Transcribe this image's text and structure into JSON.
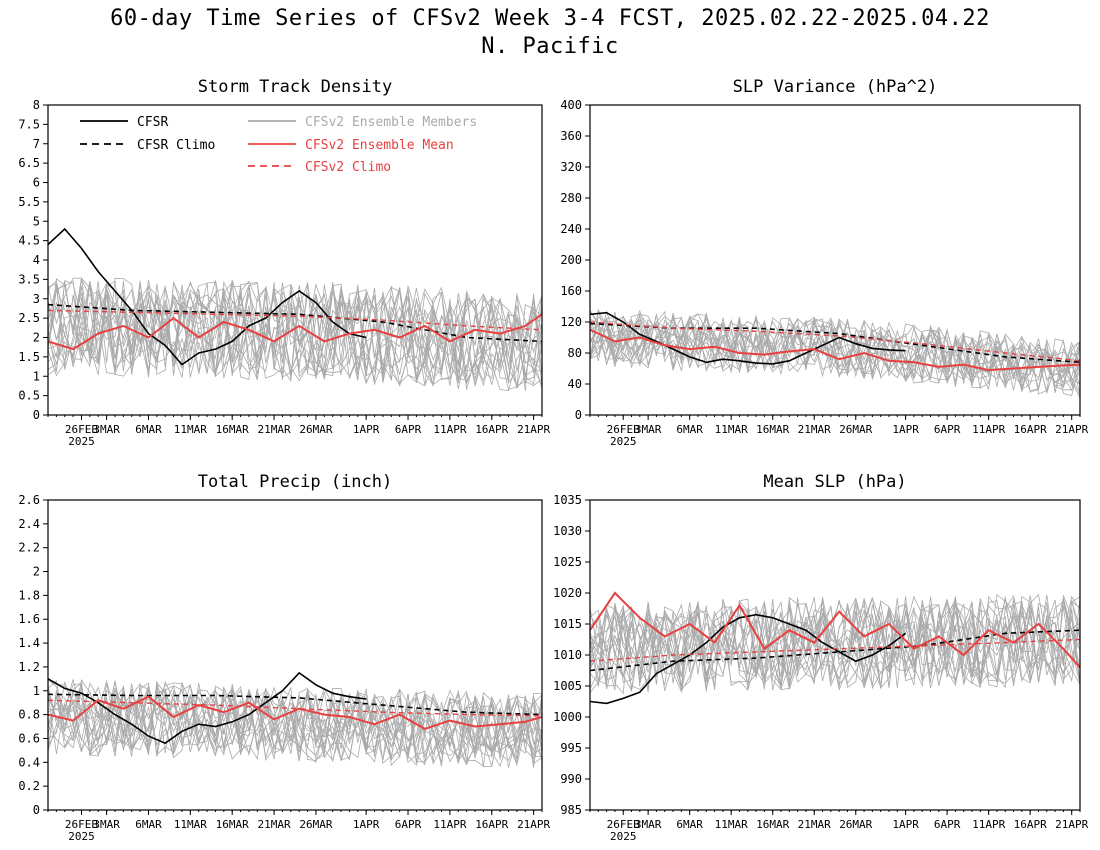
{
  "title": "60-day Time Series of CFSv2 Week 3-4 FCST, 2025.02.22-2025.04.22",
  "subtitle": "N. Pacific",
  "x_ticks": [
    "26FEB",
    "3MAR",
    "6MAR",
    "11MAR",
    "16MAR",
    "21MAR",
    "26MAR",
    "1APR",
    "6APR",
    "11APR",
    "16APR",
    "21APR"
  ],
  "x_year_label": "2025",
  "legend": [
    {
      "name": "CFSR",
      "color": "#000000",
      "dash": "solid"
    },
    {
      "name": "CFSR Climo",
      "color": "#000000",
      "dash": "dashed"
    },
    {
      "name": "CFSv2 Ensemble Members",
      "color": "#aaaaaa",
      "dash": "solid"
    },
    {
      "name": "CFSv2 Ensemble Mean",
      "color": "#e84040",
      "dash": "solid"
    },
    {
      "name": "CFSv2 Climo",
      "color": "#e84040",
      "dash": "dashed"
    }
  ],
  "colors": {
    "cfsr": "#000000",
    "member": "#aaaaaa",
    "mean": "#e84040",
    "climo_cfsv2": "#e84040"
  },
  "chart_data": [
    {
      "type": "line",
      "title": "Storm Track Density",
      "ylim": [
        0,
        8
      ],
      "yticks": [
        "0",
        "0.5",
        "1",
        "1.5",
        "2",
        "2.5",
        "3",
        "3.5",
        "4",
        "4.5",
        "5",
        "5.5",
        "6",
        "6.5",
        "7",
        "7.5",
        "8"
      ],
      "has_legend": true,
      "series": [
        {
          "name": "CFSR",
          "x": [
            0,
            2,
            4,
            6,
            8,
            10,
            12,
            14,
            16,
            18,
            20,
            22,
            24,
            26,
            28,
            30,
            32,
            34,
            36,
            38
          ],
          "values": [
            4.4,
            4.8,
            4.3,
            3.7,
            3.2,
            2.7,
            2.1,
            1.8,
            1.3,
            1.6,
            1.7,
            1.9,
            2.3,
            2.5,
            2.9,
            3.2,
            2.9,
            2.4,
            2.1,
            2.0
          ]
        },
        {
          "name": "CFSR Climo",
          "x": [
            0,
            10,
            20,
            30,
            40,
            50,
            59
          ],
          "values": [
            2.85,
            2.7,
            2.65,
            2.6,
            2.4,
            2.0,
            1.9
          ]
        },
        {
          "name": "CFSv2 Ensemble Mean",
          "x": [
            0,
            3,
            6,
            9,
            12,
            15,
            18,
            21,
            24,
            27,
            30,
            33,
            36,
            39,
            42,
            45,
            48,
            51,
            54,
            57,
            59
          ],
          "values": [
            1.9,
            1.7,
            2.1,
            2.3,
            2.0,
            2.5,
            2.0,
            2.4,
            2.2,
            1.9,
            2.3,
            1.9,
            2.1,
            2.2,
            2.0,
            2.3,
            1.9,
            2.2,
            2.1,
            2.3,
            2.6
          ]
        },
        {
          "name": "CFSv2 Climo",
          "x": [
            0,
            10,
            20,
            30,
            40,
            50,
            59
          ],
          "values": [
            2.7,
            2.65,
            2.6,
            2.55,
            2.45,
            2.3,
            2.2
          ]
        }
      ],
      "ensemble_members": {
        "center": 2.1,
        "spread": 1.3
      }
    },
    {
      "type": "line",
      "title": "SLP Variance (hPa^2)",
      "ylim": [
        0,
        400
      ],
      "yticks": [
        "0",
        "40",
        "80",
        "120",
        "160",
        "200",
        "240",
        "280",
        "320",
        "360",
        "400"
      ],
      "has_legend": false,
      "series": [
        {
          "name": "CFSR",
          "x": [
            0,
            2,
            4,
            6,
            8,
            10,
            12,
            14,
            16,
            18,
            20,
            22,
            24,
            26,
            28,
            30,
            32,
            34,
            36,
            38
          ],
          "values": [
            130,
            132,
            120,
            104,
            95,
            85,
            75,
            68,
            72,
            70,
            67,
            66,
            70,
            80,
            90,
            100,
            92,
            86,
            84,
            83
          ]
        },
        {
          "name": "CFSR Climo",
          "x": [
            0,
            10,
            20,
            30,
            40,
            50,
            59
          ],
          "values": [
            118,
            112,
            112,
            105,
            90,
            75,
            68
          ]
        },
        {
          "name": "CFSv2 Ensemble Mean",
          "x": [
            0,
            3,
            6,
            9,
            12,
            15,
            18,
            21,
            24,
            27,
            30,
            33,
            36,
            39,
            42,
            45,
            48,
            51,
            54,
            57,
            59
          ],
          "values": [
            110,
            95,
            100,
            90,
            85,
            88,
            80,
            78,
            82,
            85,
            72,
            80,
            70,
            68,
            62,
            65,
            58,
            60,
            62,
            64,
            65
          ]
        },
        {
          "name": "CFSv2 Climo",
          "x": [
            0,
            10,
            20,
            30,
            40,
            50,
            59
          ],
          "values": [
            120,
            112,
            108,
            102,
            92,
            80,
            70
          ]
        }
      ],
      "ensemble_members": {
        "center": 85,
        "spread": 38
      }
    },
    {
      "type": "line",
      "title": "Total Precip (inch)",
      "ylim": [
        0,
        2.6
      ],
      "yticks": [
        "0",
        "0.2",
        "0.4",
        "0.6",
        "0.8",
        "1",
        "1.2",
        "1.4",
        "1.6",
        "1.8",
        "2",
        "2.2",
        "2.4",
        "2.6"
      ],
      "has_legend": false,
      "series": [
        {
          "name": "CFSR",
          "x": [
            0,
            2,
            4,
            6,
            8,
            10,
            12,
            14,
            16,
            18,
            20,
            22,
            24,
            26,
            28,
            30,
            32,
            34,
            36,
            38
          ],
          "values": [
            1.1,
            1.02,
            0.98,
            0.9,
            0.8,
            0.72,
            0.62,
            0.56,
            0.66,
            0.72,
            0.7,
            0.74,
            0.8,
            0.9,
            1.0,
            1.15,
            1.05,
            0.98,
            0.95,
            0.93
          ]
        },
        {
          "name": "CFSR Climo",
          "x": [
            0,
            10,
            20,
            30,
            40,
            50,
            59
          ],
          "values": [
            0.97,
            0.96,
            0.96,
            0.94,
            0.88,
            0.82,
            0.8
          ]
        },
        {
          "name": "CFSv2 Ensemble Mean",
          "x": [
            0,
            3,
            6,
            9,
            12,
            15,
            18,
            21,
            24,
            27,
            30,
            33,
            36,
            39,
            42,
            45,
            48,
            51,
            54,
            57,
            59
          ],
          "values": [
            0.8,
            0.75,
            0.92,
            0.85,
            0.95,
            0.78,
            0.88,
            0.82,
            0.9,
            0.76,
            0.85,
            0.8,
            0.78,
            0.72,
            0.8,
            0.68,
            0.75,
            0.7,
            0.72,
            0.74,
            0.78
          ]
        },
        {
          "name": "CFSv2 Climo",
          "x": [
            0,
            10,
            20,
            30,
            40,
            50,
            59
          ],
          "values": [
            0.92,
            0.9,
            0.88,
            0.85,
            0.82,
            0.8,
            0.79
          ]
        }
      ],
      "ensemble_members": {
        "center": 0.8,
        "spread": 0.32
      }
    },
    {
      "type": "line",
      "title": "Mean SLP (hPa)",
      "ylim": [
        985,
        1035
      ],
      "yticks": [
        "985",
        "990",
        "995",
        "1000",
        "1005",
        "1010",
        "1015",
        "1020",
        "1025",
        "1030",
        "1035"
      ],
      "has_legend": false,
      "series": [
        {
          "name": "CFSR",
          "x": [
            0,
            2,
            4,
            6,
            8,
            10,
            12,
            14,
            16,
            18,
            20,
            22,
            24,
            26,
            28,
            30,
            32,
            34,
            36,
            38
          ],
          "values": [
            1002.5,
            1002.2,
            1003,
            1004,
            1007,
            1008.5,
            1010,
            1012,
            1014.5,
            1016,
            1016.5,
            1016,
            1015,
            1014,
            1012,
            1010.5,
            1009,
            1010,
            1011.5,
            1013.5
          ]
        },
        {
          "name": "CFSR Climo",
          "x": [
            0,
            10,
            20,
            30,
            40,
            50,
            59
          ],
          "values": [
            1007.5,
            1009,
            1009.5,
            1010.5,
            1011.5,
            1013.5,
            1014
          ]
        },
        {
          "name": "CFSv2 Ensemble Mean",
          "x": [
            0,
            3,
            6,
            9,
            12,
            15,
            18,
            21,
            24,
            27,
            30,
            33,
            36,
            39,
            42,
            45,
            48,
            51,
            54,
            57,
            59
          ],
          "values": [
            1014,
            1020,
            1016,
            1013,
            1015,
            1012,
            1018,
            1011,
            1014,
            1012,
            1017,
            1013,
            1015,
            1011,
            1013,
            1010,
            1014,
            1012,
            1015,
            1011,
            1008
          ]
        },
        {
          "name": "CFSv2 Climo",
          "x": [
            0,
            10,
            20,
            30,
            40,
            50,
            59
          ],
          "values": [
            1009,
            1010,
            1010.5,
            1011,
            1011.5,
            1012,
            1012.5
          ]
        }
      ],
      "ensemble_members": {
        "center": 1012.5,
        "spread": 7.5
      }
    }
  ]
}
